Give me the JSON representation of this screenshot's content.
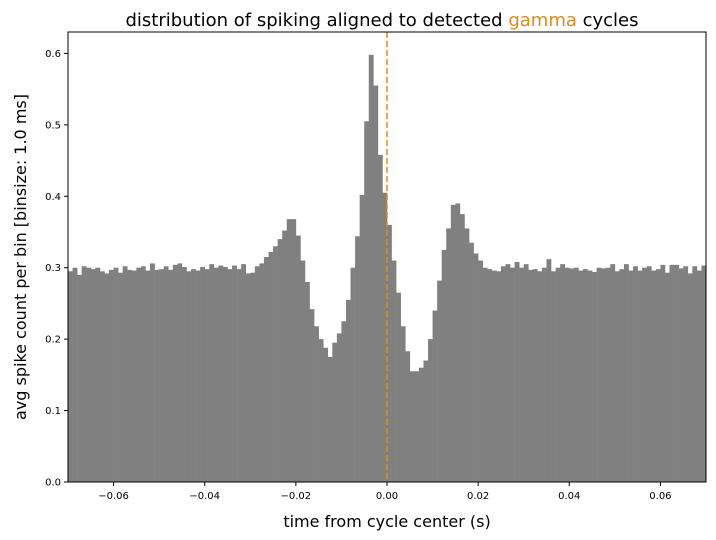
{
  "chart_data": {
    "type": "bar",
    "title_parts": [
      {
        "text": "distribution of spiking aligned to detected ",
        "color": "#000000"
      },
      {
        "text": "gamma",
        "color": "#e08a1e"
      },
      {
        "text": " cycles",
        "color": "#000000"
      }
    ],
    "xlabel": "time from cycle center (s)",
    "ylabel": "avg spike count per bin [binsize: 1.0 ms]",
    "xlim": [
      -0.07,
      0.07
    ],
    "ylim": [
      0,
      0.63
    ],
    "x_ticks": [
      -0.06,
      -0.04,
      -0.02,
      0.0,
      0.02,
      0.04,
      0.06
    ],
    "x_tick_labels": [
      "−0.06",
      "−0.04",
      "−0.02",
      "0.00",
      "0.02",
      "0.04",
      "0.06"
    ],
    "y_ticks": [
      0.0,
      0.1,
      0.2,
      0.3,
      0.4,
      0.5,
      0.6
    ],
    "y_tick_labels": [
      "0.0",
      "0.1",
      "0.2",
      "0.3",
      "0.4",
      "0.5",
      "0.6"
    ],
    "bin_start": -0.07,
    "bin_width": 0.001,
    "bar_color": "#808080",
    "vline": {
      "x": 0.0,
      "color": "#e08a1e",
      "style": "dashed"
    },
    "values": [
      0.295,
      0.3,
      0.29,
      0.302,
      0.3,
      0.298,
      0.3,
      0.295,
      0.292,
      0.297,
      0.3,
      0.293,
      0.302,
      0.297,
      0.296,
      0.3,
      0.302,
      0.296,
      0.306,
      0.297,
      0.298,
      0.302,
      0.297,
      0.304,
      0.306,
      0.301,
      0.295,
      0.298,
      0.296,
      0.301,
      0.298,
      0.305,
      0.3,
      0.303,
      0.301,
      0.298,
      0.303,
      0.298,
      0.305,
      0.292,
      0.293,
      0.302,
      0.306,
      0.315,
      0.322,
      0.33,
      0.34,
      0.352,
      0.368,
      0.368,
      0.345,
      0.31,
      0.28,
      0.242,
      0.218,
      0.2,
      0.188,
      0.175,
      0.195,
      0.208,
      0.225,
      0.255,
      0.3,
      0.344,
      0.402,
      0.505,
      0.598,
      0.555,
      0.458,
      0.405,
      0.36,
      0.31,
      0.265,
      0.218,
      0.183,
      0.155,
      0.155,
      0.16,
      0.17,
      0.2,
      0.24,
      0.282,
      0.325,
      0.355,
      0.388,
      0.39,
      0.375,
      0.355,
      0.335,
      0.32,
      0.31,
      0.3,
      0.298,
      0.296,
      0.295,
      0.302,
      0.305,
      0.3,
      0.308,
      0.3,
      0.305,
      0.297,
      0.298,
      0.295,
      0.3,
      0.312,
      0.295,
      0.3,
      0.305,
      0.3,
      0.299,
      0.3,
      0.296,
      0.298,
      0.296,
      0.294,
      0.3,
      0.299,
      0.3,
      0.305,
      0.295,
      0.298,
      0.305,
      0.296,
      0.302,
      0.296,
      0.3,
      0.302,
      0.296,
      0.298,
      0.304,
      0.293,
      0.304,
      0.304,
      0.299,
      0.302,
      0.292,
      0.302,
      0.296,
      0.303
    ]
  }
}
